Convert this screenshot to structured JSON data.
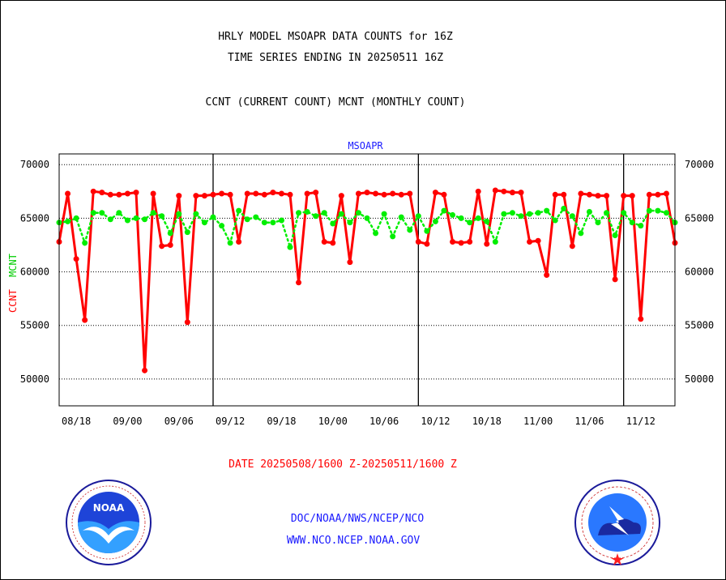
{
  "header": {
    "title_line1": "HRLY MODEL MSOAPR DATA COUNTS for 16Z",
    "title_line2": "TIME SERIES ENDING IN 20250511 16Z",
    "legend_line": "CCNT (CURRENT COUNT) MCNT (MONTHLY COUNT)"
  },
  "footer": {
    "date_range": "DATE 20250508/1600 Z-20250511/1600 Z",
    "org_line": "DOC/NOAA/NWS/NCEP/NCO",
    "url_line": "WWW.NCO.NCEP.NOAA.GOV",
    "noaa_badge": "NOAA"
  },
  "colors": {
    "ccnt": "#ff0000",
    "mcnt": "#00ee00",
    "accent": "#1a1aff"
  },
  "chart_data": {
    "type": "line",
    "title": "MSOAPR",
    "ylabel_left_red": "CCNT",
    "ylabel_left_green": "MCNT",
    "ylim": [
      47500,
      71000
    ],
    "yticks": [
      50000,
      55000,
      60000,
      65000,
      70000
    ],
    "ytick_labels": [
      "50000",
      "55000",
      "60000",
      "65000",
      "70000"
    ],
    "x_tick_labels": [
      "08/18",
      "09/00",
      "09/06",
      "09/12",
      "09/18",
      "10/00",
      "10/06",
      "10/12",
      "10/18",
      "11/00",
      "11/06",
      "11/12"
    ],
    "x_hours": [
      0,
      1,
      2,
      3,
      4,
      5,
      6,
      7,
      8,
      9,
      10,
      11,
      12,
      13,
      14,
      15,
      16,
      17,
      18,
      19,
      20,
      21,
      22,
      23,
      24,
      25,
      26,
      27,
      28,
      29,
      30,
      31,
      32,
      33,
      34,
      35,
      36,
      37,
      38,
      39,
      40,
      41,
      42,
      43,
      44,
      45,
      46,
      47,
      48,
      49,
      50,
      51,
      52,
      53,
      54,
      55,
      56,
      57,
      58,
      59,
      60,
      61,
      62,
      63,
      64,
      65,
      66,
      67,
      68,
      69,
      70,
      71,
      72
    ],
    "grid": true,
    "series": [
      {
        "name": "CCNT",
        "color": "#ff0000",
        "values": [
          62800,
          67300,
          61200,
          55500,
          67500,
          67400,
          67200,
          67200,
          67300,
          67400,
          50800,
          67300,
          62400,
          62500,
          67100,
          55300,
          67100,
          67100,
          67200,
          67300,
          67200,
          62800,
          67300,
          67300,
          67200,
          67400,
          67300,
          67200,
          59000,
          67300,
          67400,
          62800,
          62700,
          67100,
          60900,
          67300,
          67400,
          67300,
          67200,
          67300,
          67200,
          67300,
          62800,
          62600,
          67400,
          67200,
          62800,
          62700,
          62800,
          67500,
          62600,
          67600,
          67500,
          67400,
          67400,
          62800,
          62900,
          59700,
          67200,
          67200,
          62400,
          67300,
          67200,
          67100,
          67100,
          59300,
          67100,
          67100,
          55600,
          67200,
          67200,
          67300,
          62700
        ]
      },
      {
        "name": "MCNT",
        "color": "#00ee00",
        "values": [
          64600,
          64700,
          65000,
          62700,
          65500,
          65500,
          64900,
          65500,
          64800,
          65000,
          64900,
          65500,
          65200,
          63600,
          65400,
          63700,
          65400,
          64600,
          65100,
          64300,
          62700,
          65700,
          64900,
          65100,
          64600,
          64600,
          64800,
          62300,
          65500,
          65600,
          65200,
          65500,
          64500,
          65400,
          64600,
          65500,
          65000,
          63600,
          65400,
          63300,
          65100,
          63900,
          65200,
          63800,
          64700,
          65700,
          65300,
          65000,
          64600,
          65000,
          64700,
          62800,
          65400,
          65500,
          65200,
          65400,
          65500,
          65700,
          64800,
          65900,
          65200,
          63600,
          65600,
          64600,
          65500,
          63400,
          65500,
          64600,
          64300,
          65700,
          65700,
          65500,
          64600
        ]
      }
    ]
  }
}
